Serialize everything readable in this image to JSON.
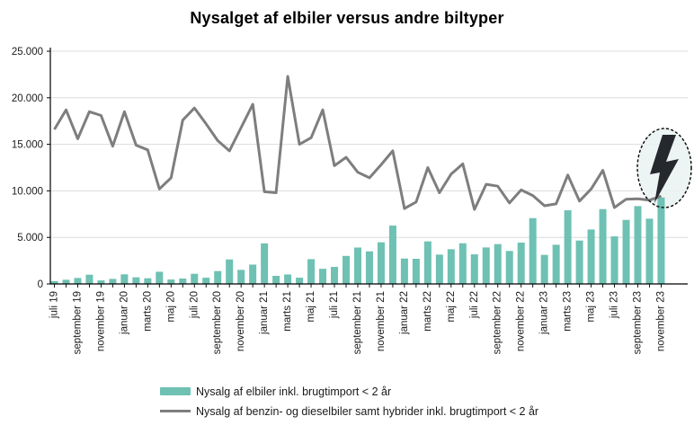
{
  "title": "Nysalget af elbiler versus andre biltyper",
  "colors": {
    "ev_bar": "#6EC1B3",
    "ice_line": "#7E7E7E",
    "gridline": "#DCDCDC",
    "axis": "#000000",
    "text": "#1A1A1A",
    "highlight_fill": "#EAF3F2",
    "highlight_border": "#111111",
    "bolt": "#25282D",
    "background": "#FFFFFF"
  },
  "chart_data": {
    "type": "bar",
    "title": "Nysalget af elbiler versus andre biltyper",
    "categories": [
      "juli 19",
      "august 19",
      "september 19",
      "oktober 19",
      "november 19",
      "december 19",
      "januar 20",
      "februar 20",
      "marts 20",
      "april 20",
      "maj 20",
      "juni 20",
      "juli 20",
      "august 20",
      "september 20",
      "oktober 20",
      "november 20",
      "december 20",
      "januar 21",
      "februar 21",
      "marts 21",
      "april 21",
      "maj 21",
      "juni 21",
      "juli 21",
      "august 21",
      "september 21",
      "oktober 21",
      "november 21",
      "december 21",
      "januar 22",
      "februar 22",
      "marts 22",
      "april 22",
      "maj 22",
      "juni 22",
      "juli 22",
      "august 22",
      "september 22",
      "oktober 22",
      "november 22",
      "december 22",
      "januar 23",
      "februar 23",
      "marts 23",
      "april 23",
      "maj 23",
      "juni 23",
      "juli 23",
      "august 23",
      "september 23",
      "oktober 23",
      "november 23"
    ],
    "x_tick_label_step": 2,
    "x_tick_labels_shown": [
      "juli 19",
      "september 19",
      "november 19",
      "januar 20",
      "marts 20",
      "maj 20",
      "juli 20",
      "september 20",
      "november 20",
      "januar 21",
      "marts 21",
      "maj 21",
      "juli 21",
      "september 21",
      "november 21",
      "januar 22",
      "marts 22",
      "maj 22",
      "juli 22",
      "september 22",
      "november 22",
      "januar 23",
      "marts 23",
      "maj 23",
      "juli 23",
      "september 23",
      "november 23"
    ],
    "series": [
      {
        "name": "Nysalg af elbiler inkl. brugtimport < 2 år",
        "type": "bar",
        "color": "#6EC1B3",
        "values": [
          300,
          450,
          640,
          990,
          380,
          540,
          1030,
          710,
          610,
          1310,
          480,
          580,
          1090,
          670,
          1380,
          2630,
          1510,
          2080,
          4360,
          870,
          1020,
          670,
          2660,
          1630,
          1830,
          3010,
          3910,
          3500,
          4470,
          6270,
          2730,
          2700,
          4570,
          3150,
          3730,
          4370,
          3180,
          3920,
          4280,
          3540,
          4440,
          7070,
          3120,
          4210,
          7910,
          4660,
          5850,
          8040,
          5110,
          6880,
          8360,
          7010,
          9290
        ]
      },
      {
        "name": "Nysalg af benzin- og dieselbiler samt hybrider inkl. brugtimport < 2 år",
        "type": "line",
        "color": "#7E7E7E",
        "values": [
          16600,
          18700,
          15600,
          18500,
          18100,
          14800,
          18500,
          14900,
          14400,
          10200,
          11400,
          17600,
          18900,
          17200,
          15400,
          14300,
          16800,
          19300,
          9900,
          9800,
          22300,
          15000,
          15700,
          18700,
          12700,
          13600,
          12000,
          11400,
          12800,
          14300,
          8100,
          8800,
          12500,
          9800,
          11800,
          12900,
          8000,
          10700,
          10500,
          8700,
          10100,
          9500,
          8400,
          8600,
          11700,
          8900,
          10200,
          12200,
          8200,
          9100,
          9150,
          9000,
          9450
        ]
      }
    ],
    "y_axis": {
      "min": 0,
      "max": 25000,
      "step": 5000,
      "tick_labels": [
        "0",
        "5.000",
        "10.000",
        "15.000",
        "20.000",
        "25.000"
      ]
    },
    "grid": "horizontal",
    "legend_position": "bottom",
    "annotation": {
      "shape": "dashed-ellipse",
      "icon": "lightning-bolt-icon",
      "attached_to": "november 23"
    }
  }
}
